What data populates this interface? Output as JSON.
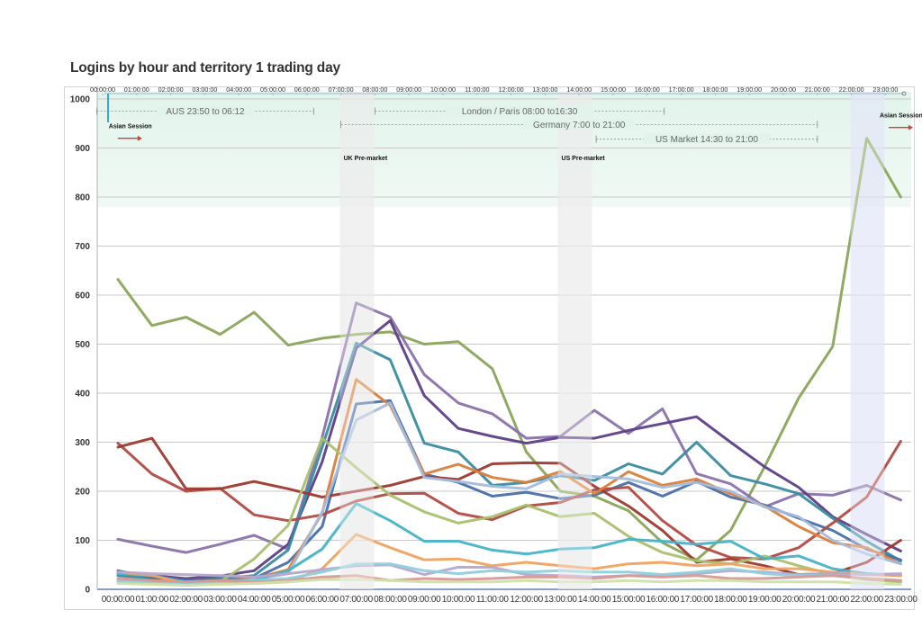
{
  "chart_data": {
    "type": "line",
    "title": "Logins by hour and territory 1 trading day",
    "xlabel": "",
    "ylabel": "",
    "ylim": [
      0,
      1000
    ],
    "yticks": [
      0,
      100,
      200,
      300,
      400,
      500,
      600,
      700,
      800,
      900,
      1000
    ],
    "grid": true,
    "x_tick_labels": [
      "00:00:00",
      "01:00:00",
      "02:00:00",
      "03:00:00",
      "04:00:00",
      "05:00:00",
      "06:00:00",
      "07:00:00",
      "08:00:00",
      "09:00:00",
      "10:00:00",
      "11:00:00",
      "12:00:00",
      "13:00:00",
      "14:00:00",
      "15:00:00",
      "16:00:00",
      "17:00:00",
      "18:00:00",
      "19:00:00",
      "20:00:00",
      "21:00:00",
      "22:00:00",
      "23:00:00"
    ],
    "top_tick_labels": [
      "00:00:00",
      "01:00:00",
      "02:00:00",
      "03:00:00",
      "04:00:00",
      "05:00:00",
      "06:00:00",
      "07:00:00",
      "08:00:00",
      "09:00:00",
      "10:00:00",
      "11:00:00",
      "12:00:00",
      "13:00:00",
      "14:00:00",
      "15:00:00",
      "16:00:00",
      "17:00:00",
      "18:00:00",
      "19:00:00",
      "20:00:00",
      "21:00:00",
      "22:00:00",
      "23:00:00"
    ],
    "sessions": [
      {
        "label": "AUS 23:50 to 06:12",
        "start": -0.17,
        "end": 6.2,
        "level": 975
      },
      {
        "label": "London / Paris 08:00 to16:30",
        "start": 8.0,
        "end": 16.5,
        "level": 975
      },
      {
        "label": "Germany 7:00 to 21:00",
        "start": 7.0,
        "end": 21.0,
        "level": 948
      },
      {
        "label": "US Market 14:30 to 21:00",
        "start": 14.5,
        "end": 21.0,
        "level": 918
      }
    ],
    "annotations": [
      {
        "text": "Asian Session",
        "x": 0.1,
        "y": 940,
        "arrow": true
      },
      {
        "text": "Asian Session",
        "x": 22.75,
        "y": 962,
        "arrow": true
      },
      {
        "text": "UK Pre-market",
        "x": 7.0,
        "y": 875
      },
      {
        "text": "US Pre-market",
        "x": 13.4,
        "y": 875
      }
    ],
    "highlights": [
      {
        "name": "UK Pre-market",
        "start": 7.0,
        "end": 8.0,
        "color": "#d8d8d8"
      },
      {
        "name": "US Pre-market",
        "start": 13.4,
        "end": 14.4,
        "color": "#d8d8d8"
      },
      {
        "name": "Asian Session",
        "start": 22.0,
        "end": 23.0,
        "color": "#c9cdf0"
      }
    ],
    "session_band": {
      "from": 780,
      "to": 1000,
      "color": "#dff3ea"
    },
    "series": [
      {
        "name": "Green",
        "color": "#8aa55a",
        "values": [
          632,
          538,
          555,
          520,
          565,
          498,
          512,
          520,
          525,
          500,
          505,
          450,
          280,
          200,
          190,
          160,
          95,
          60,
          120,
          250,
          390,
          495,
          920,
          800
        ]
      },
      {
        "name": "Purple",
        "color": "#8a72aa",
        "values": [
          102,
          88,
          75,
          92,
          110,
          82,
          310,
          584,
          555,
          438,
          380,
          358,
          308,
          312,
          365,
          318,
          368,
          236,
          215,
          168,
          195,
          192,
          212,
          182
        ]
      },
      {
        "name": "Dark Purple",
        "color": "#5d3f87",
        "values": [
          32,
          28,
          22,
          27,
          38,
          92,
          260,
          492,
          548,
          395,
          328,
          312,
          298,
          310,
          308,
          324,
          338,
          352,
          300,
          250,
          208,
          148,
          112,
          78
        ]
      },
      {
        "name": "Teal",
        "color": "#3a8ca0",
        "values": [
          28,
          22,
          18,
          22,
          28,
          80,
          290,
          502,
          468,
          298,
          280,
          212,
          218,
          232,
          222,
          256,
          235,
          300,
          232,
          215,
          195,
          145,
          98,
          58
        ]
      },
      {
        "name": "Blue",
        "color": "#4a6fa8",
        "values": [
          38,
          24,
          18,
          20,
          22,
          55,
          128,
          378,
          385,
          235,
          218,
          190,
          198,
          185,
          192,
          218,
          190,
          220,
          188,
          172,
          145,
          120,
          82,
          60
        ]
      },
      {
        "name": "Red",
        "color": "#b14a42",
        "values": [
          298,
          235,
          200,
          206,
          152,
          140,
          152,
          180,
          195,
          196,
          155,
          142,
          170,
          177,
          203,
          208,
          140,
          90,
          65,
          62,
          85,
          135,
          188,
          302
        ]
      },
      {
        "name": "Dark Red",
        "color": "#9e3a30",
        "values": [
          290,
          308,
          205,
          205,
          220,
          205,
          188,
          200,
          212,
          230,
          224,
          256,
          258,
          257,
          210,
          170,
          120,
          55,
          62,
          48,
          30,
          32,
          55,
          100
        ]
      },
      {
        "name": "Orange",
        "color": "#d9803a",
        "values": [
          20,
          18,
          15,
          18,
          22,
          40,
          155,
          428,
          375,
          235,
          255,
          228,
          218,
          240,
          195,
          240,
          212,
          225,
          195,
          170,
          128,
          95,
          85,
          52
        ]
      },
      {
        "name": "Light Green",
        "color": "#a9c06e",
        "values": [
          18,
          14,
          10,
          15,
          62,
          130,
          308,
          248,
          192,
          158,
          135,
          148,
          172,
          148,
          155,
          108,
          75,
          58,
          52,
          68,
          48,
          30,
          20,
          15
        ]
      },
      {
        "name": "Light Blue",
        "color": "#a4bcdc",
        "values": [
          14,
          12,
          10,
          15,
          20,
          32,
          158,
          345,
          380,
          228,
          220,
          210,
          205,
          235,
          230,
          225,
          208,
          218,
          200,
          168,
          148,
          100,
          72,
          52
        ]
      },
      {
        "name": "Cyan",
        "color": "#44b3c8",
        "values": [
          32,
          28,
          15,
          18,
          18,
          38,
          82,
          175,
          140,
          98,
          98,
          80,
          72,
          82,
          85,
          102,
          98,
          92,
          98,
          62,
          68,
          42,
          32,
          28
        ]
      },
      {
        "name": "Light Orange",
        "color": "#efa360",
        "values": [
          35,
          28,
          12,
          12,
          12,
          15,
          42,
          112,
          85,
          60,
          62,
          48,
          55,
          48,
          42,
          52,
          55,
          48,
          52,
          42,
          42,
          35,
          30,
          28
        ]
      },
      {
        "name": "Lavender",
        "color": "#b6a6cf",
        "values": [
          35,
          32,
          30,
          28,
          25,
          32,
          40,
          48,
          50,
          30,
          45,
          45,
          30,
          28,
          25,
          28,
          28,
          32,
          38,
          35,
          30,
          32,
          30,
          32
        ]
      },
      {
        "name": "Pale Teal",
        "color": "#8fd0dc",
        "values": [
          18,
          15,
          12,
          15,
          18,
          22,
          35,
          52,
          52,
          38,
          32,
          38,
          35,
          38,
          35,
          35,
          30,
          35,
          42,
          32,
          28,
          28,
          22,
          18
        ]
      },
      {
        "name": "Rose",
        "color": "#d79a94",
        "values": [
          22,
          18,
          15,
          18,
          15,
          18,
          25,
          28,
          18,
          22,
          20,
          22,
          25,
          25,
          22,
          28,
          25,
          28,
          22,
          22,
          25,
          28,
          22,
          18
        ]
      },
      {
        "name": "Pale Green",
        "color": "#cfe0a8",
        "values": [
          12,
          10,
          8,
          10,
          12,
          15,
          20,
          20,
          18,
          15,
          15,
          15,
          18,
          15,
          15,
          18,
          15,
          18,
          18,
          15,
          15,
          15,
          12,
          10
        ]
      }
    ]
  }
}
